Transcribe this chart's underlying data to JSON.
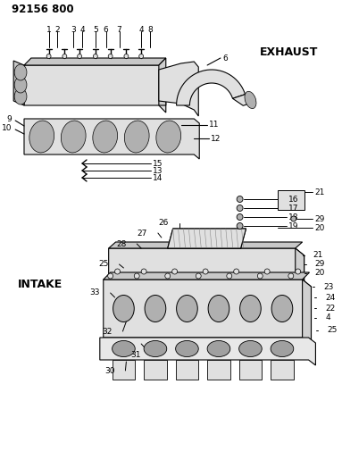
{
  "title": "92156 800",
  "bg_color": "#ffffff",
  "exhaust_label": "EXHAUST",
  "intake_label": "INTAKE",
  "figsize": [
    3.83,
    5.33
  ],
  "dpi": 100
}
